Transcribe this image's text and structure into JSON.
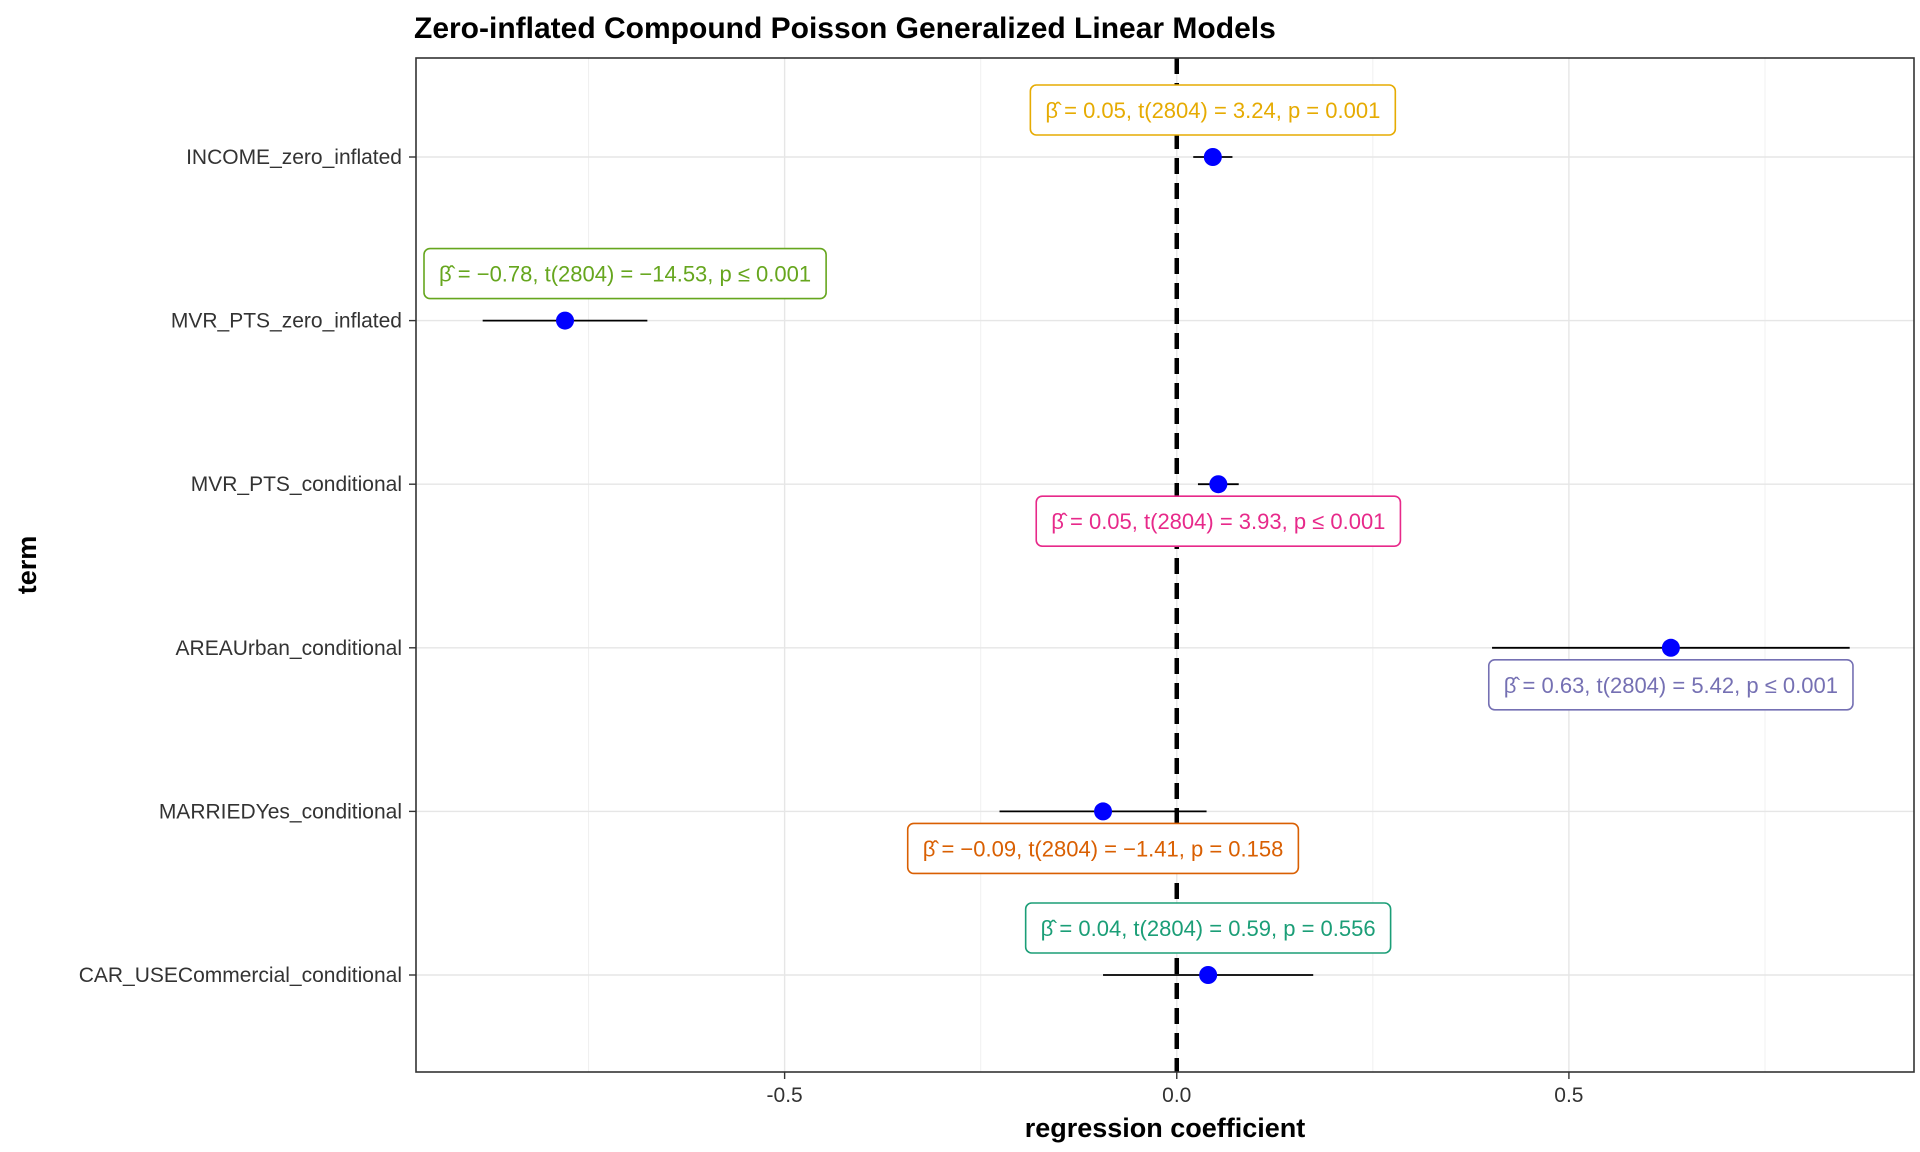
{
  "chart_data": {
    "type": "scatter",
    "subtype": "coefficient-dot-whisker",
    "title": "Zero-inflated Compound Poisson Generalized Linear Models",
    "xlabel": "regression coefficient",
    "ylabel": "term",
    "xlim": [
      -0.97,
      0.94
    ],
    "x_ticks": [
      -0.5,
      0.0,
      0.5
    ],
    "x_tick_labels": [
      "-0.5",
      "0.0",
      "0.5"
    ],
    "reference_line": 0,
    "grid": true,
    "point_color": "#0000ff",
    "terms": [
      {
        "term": "INCOME_zero_inflated",
        "estimate": 0.046,
        "ci_low": 0.021,
        "ci_high": 0.071,
        "label": "β̂ = 0.05,  t(2804) = 3.24,  p = 0.001",
        "color": "#E6AB02",
        "label_side": "above"
      },
      {
        "term": "MVR_PTS_zero_inflated",
        "estimate": -0.78,
        "ci_low": -0.885,
        "ci_high": -0.675,
        "label": "β̂ = −0.78,  t(2804) = −14.53,  p ≤ 0.001",
        "color": "#66A61E",
        "label_side": "above"
      },
      {
        "term": "MVR_PTS_conditional",
        "estimate": 0.053,
        "ci_low": 0.027,
        "ci_high": 0.079,
        "label": "β̂ = 0.05,  t(2804) = 3.93,  p ≤ 0.001",
        "color": "#E7298A",
        "label_side": "below"
      },
      {
        "term": "AREAUrban_conditional",
        "estimate": 0.63,
        "ci_low": 0.402,
        "ci_high": 0.858,
        "label": "β̂ = 0.63,  t(2804) = 5.42,  p ≤ 0.001",
        "color": "#7570B3",
        "label_side": "below"
      },
      {
        "term": "MARRIEDYes_conditional",
        "estimate": -0.094,
        "ci_low": -0.226,
        "ci_high": 0.038,
        "label": "β̂ = −0.09,  t(2804) = −1.41,  p = 0.158",
        "color": "#D95F02",
        "label_side": "below"
      },
      {
        "term": "CAR_USECommercial_conditional",
        "estimate": 0.04,
        "ci_low": -0.094,
        "ci_high": 0.174,
        "label": "β̂ = 0.04,  t(2804) = 0.59,  p = 0.556",
        "color": "#1B9E77",
        "label_side": "above"
      }
    ]
  }
}
